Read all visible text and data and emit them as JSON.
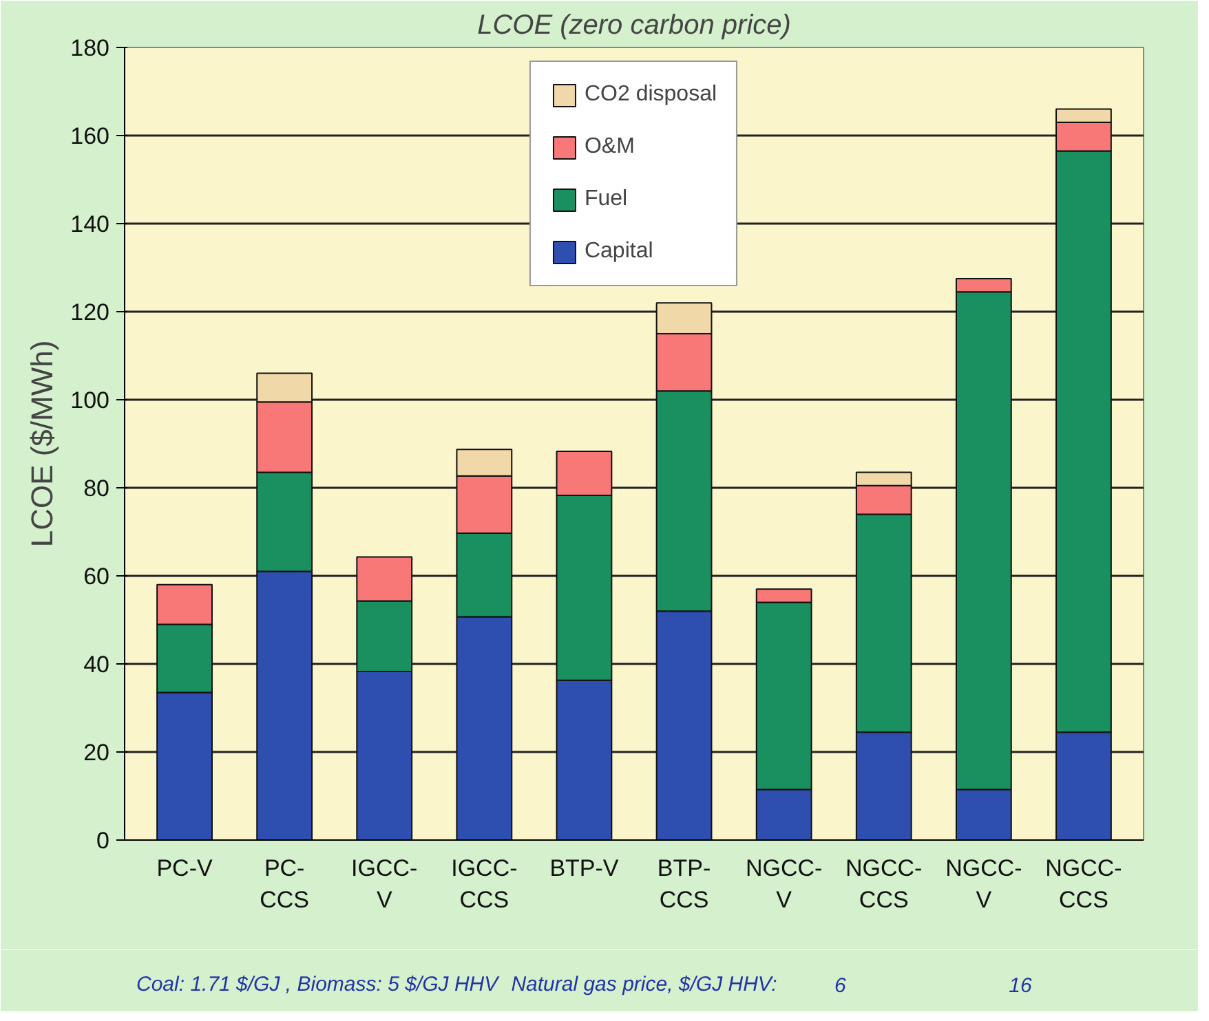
{
  "chart_data": {
    "type": "bar",
    "title": "LCOE (zero carbon price)",
    "ylabel": "LCOE ($/MWh)",
    "categories": [
      "PC-V",
      "PC-CCS",
      "IGCC-V",
      "IGCC-CCS",
      "BTP-V",
      "BTP-CCS",
      "NGCC-V",
      "NGCC-CCS",
      "NGCC-V",
      "NGCC-CCS"
    ],
    "stacked": true,
    "series": [
      {
        "name": "Capital",
        "color": "#2e4fb0",
        "values": [
          33.5,
          61,
          38.3,
          50.7,
          36.3,
          52,
          11.5,
          24.5,
          11.5,
          24.5
        ]
      },
      {
        "name": "Fuel",
        "color": "#1a9060",
        "values": [
          15.5,
          22.5,
          16,
          19,
          42,
          50,
          42.5,
          49.5,
          113,
          132
        ]
      },
      {
        "name": "O&M",
        "color": "#f87878",
        "values": [
          9,
          16,
          10,
          13,
          10,
          13,
          3,
          6.5,
          3,
          6.5
        ]
      },
      {
        "name": "CO2 disposal",
        "color": "#f0d8a8",
        "values": [
          null,
          6.5,
          null,
          6,
          null,
          7,
          null,
          3,
          null,
          3
        ]
      }
    ],
    "ylim": [
      0,
      180
    ],
    "yticks": [
      0,
      20,
      40,
      60,
      80,
      100,
      120,
      140,
      160,
      180
    ],
    "grid": "y",
    "legend": "top",
    "annotations": [
      "Coal: 1.71 $/GJ , Biomass: 5 $/GJ HHV",
      "Natural gas price, $/GJ HHV:",
      "6",
      "16"
    ]
  }
}
